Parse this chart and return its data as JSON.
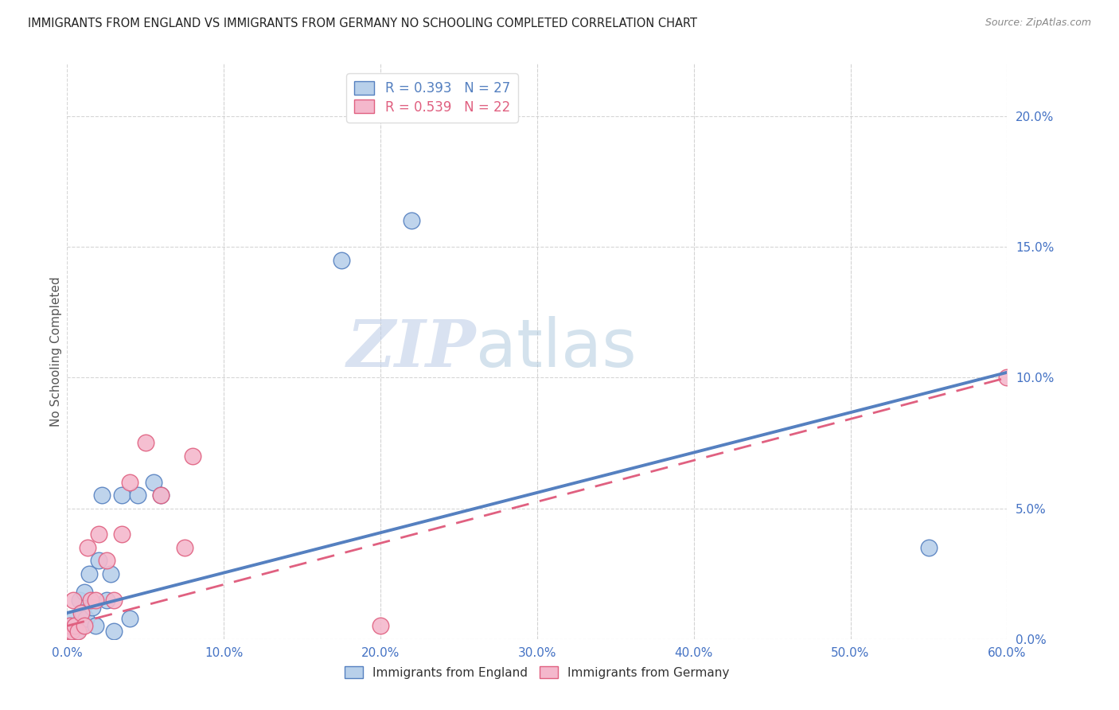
{
  "title": "IMMIGRANTS FROM ENGLAND VS IMMIGRANTS FROM GERMANY NO SCHOOLING COMPLETED CORRELATION CHART",
  "source": "Source: ZipAtlas.com",
  "xlabel_ticks": [
    "0.0%",
    "10.0%",
    "20.0%",
    "30.0%",
    "40.0%",
    "50.0%",
    "60.0%"
  ],
  "xlabel_vals": [
    0.0,
    10.0,
    20.0,
    30.0,
    40.0,
    50.0,
    60.0
  ],
  "ylabel": "No Schooling Completed",
  "ylabel_ticks": [
    "0.0%",
    "5.0%",
    "10.0%",
    "15.0%",
    "20.0%"
  ],
  "ylabel_vals": [
    0.0,
    5.0,
    10.0,
    15.0,
    20.0
  ],
  "R_england": 0.393,
  "N_england": 27,
  "R_germany": 0.539,
  "N_germany": 22,
  "england_color": "#b8d0ea",
  "germany_color": "#f4b8cc",
  "england_line_color": "#5580c0",
  "germany_line_color": "#e06080",
  "england_x": [
    0.1,
    0.2,
    0.3,
    0.4,
    0.5,
    0.6,
    0.8,
    0.9,
    1.0,
    1.1,
    1.2,
    1.4,
    1.6,
    1.8,
    2.0,
    2.2,
    2.5,
    3.0,
    3.5,
    4.0,
    4.5,
    5.5,
    6.0,
    2.8,
    17.5,
    55.0,
    22.0
  ],
  "england_y": [
    0.3,
    0.5,
    0.3,
    0.8,
    0.5,
    0.3,
    1.5,
    0.5,
    1.0,
    1.8,
    0.8,
    2.5,
    1.2,
    0.5,
    3.0,
    5.5,
    1.5,
    0.3,
    5.5,
    0.8,
    5.5,
    6.0,
    5.5,
    2.5,
    14.5,
    3.5,
    16.0
  ],
  "germany_x": [
    0.1,
    0.2,
    0.3,
    0.4,
    0.5,
    0.7,
    0.9,
    1.1,
    1.3,
    1.5,
    1.8,
    2.0,
    2.5,
    3.0,
    3.5,
    4.0,
    5.0,
    6.0,
    7.5,
    8.0,
    20.0,
    60.0
  ],
  "germany_y": [
    0.3,
    0.5,
    0.3,
    1.5,
    0.5,
    0.3,
    1.0,
    0.5,
    3.5,
    1.5,
    1.5,
    4.0,
    3.0,
    1.5,
    4.0,
    6.0,
    7.5,
    5.5,
    3.5,
    7.0,
    0.5,
    10.0
  ],
  "watermark_zip": "ZIP",
  "watermark_atlas": "atlas",
  "xlim": [
    0,
    60
  ],
  "ylim": [
    0,
    22
  ],
  "figsize": [
    14.06,
    8.92
  ],
  "dpi": 100,
  "eng_line_x0": 0,
  "eng_line_y0": 1.0,
  "eng_line_x1": 60,
  "eng_line_y1": 10.2,
  "ger_line_x0": 0,
  "ger_line_y0": 0.5,
  "ger_line_x1": 60,
  "ger_line_y1": 10.0
}
